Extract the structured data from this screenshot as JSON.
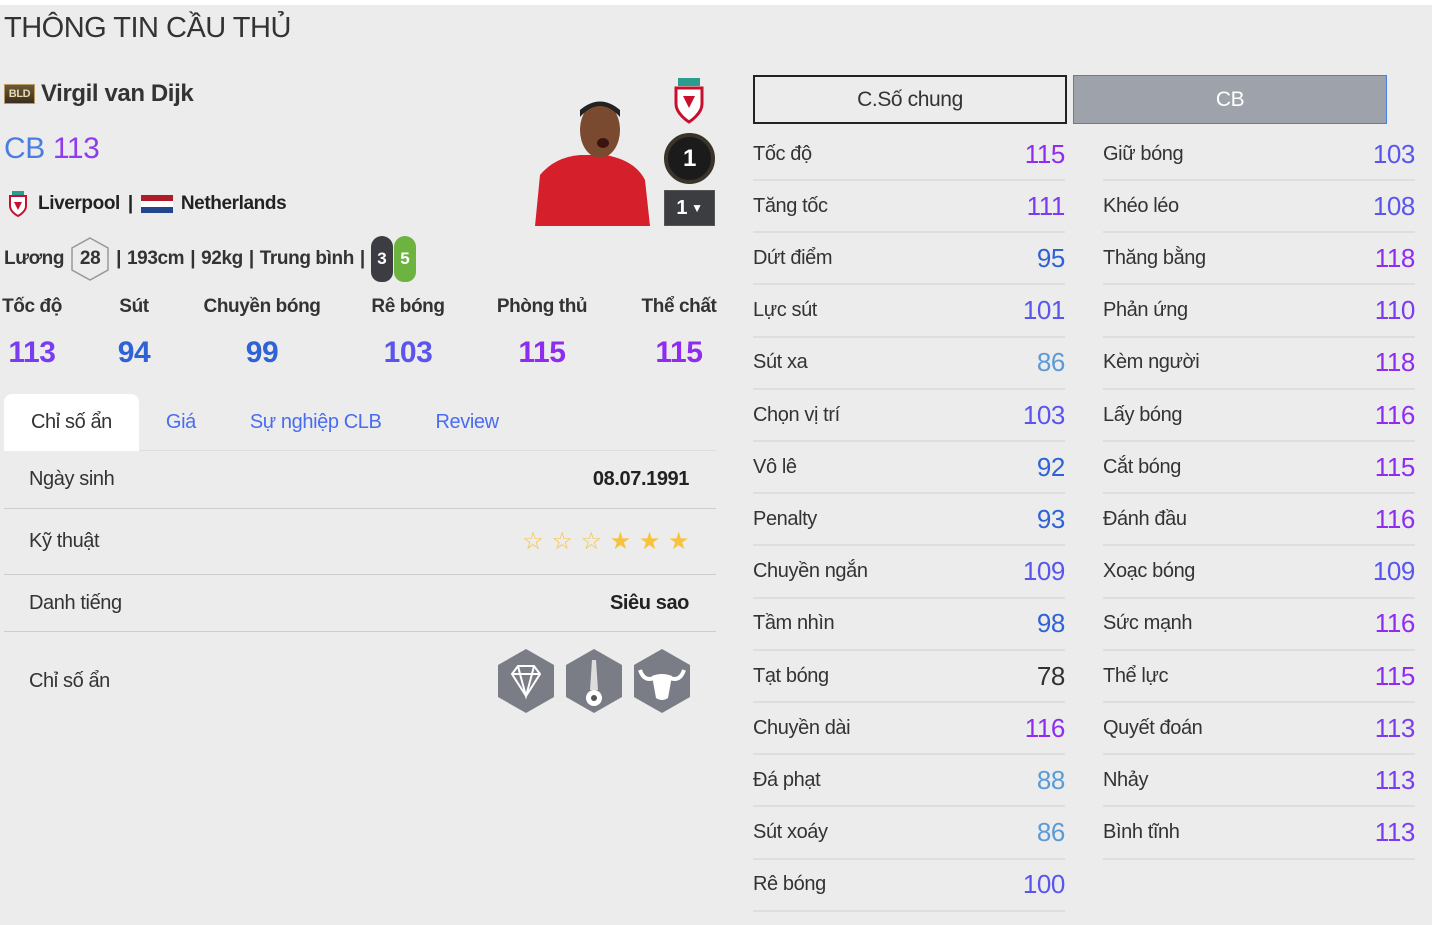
{
  "page_title": "THÔNG TIN CẦU THỦ",
  "player": {
    "season_badge": "BLD",
    "name": "Virgil van Dijk",
    "position": "CB",
    "ovr": "113",
    "club": "Liverpool",
    "nation": "Netherlands",
    "salary_label": "Lương",
    "salary": "28",
    "height": "193cm",
    "weight": "92kg",
    "body_type": "Trung bình",
    "weak_foot": "3",
    "strong_foot": "5",
    "enhance_level": "1",
    "upgrade_level": "1"
  },
  "main_stats": [
    {
      "label": "Tốc độ",
      "value": 113
    },
    {
      "label": "Sút",
      "value": 94
    },
    {
      "label": "Chuyền bóng",
      "value": 99
    },
    {
      "label": "Rê bóng",
      "value": 103
    },
    {
      "label": "Phòng thủ",
      "value": 115
    },
    {
      "label": "Thể chất",
      "value": 115
    }
  ],
  "tabs": [
    {
      "label": "Chỉ số ẩn",
      "active": true
    },
    {
      "label": "Giá"
    },
    {
      "label": "Sự nghiệp CLB"
    },
    {
      "label": "Review"
    }
  ],
  "details": {
    "birth_label": "Ngày sinh",
    "birth": "08.07.1991",
    "skill_label": "Kỹ thuật",
    "skill_stars": 3,
    "skill_max": 6,
    "fame_label": "Danh tiếng",
    "fame": "Siêu sao",
    "traits_label": "Chỉ số ẩn",
    "traits": [
      "diamond-trait-icon",
      "long-shot-trait-icon",
      "bull-trait-icon"
    ]
  },
  "stat_tabs": {
    "general": "C.Số chung",
    "position": "CB"
  },
  "stats_left": [
    {
      "label": "Tốc độ",
      "value": 115
    },
    {
      "label": "Tăng tốc",
      "value": 111
    },
    {
      "label": "Dứt điểm",
      "value": 95
    },
    {
      "label": "Lực sút",
      "value": 101
    },
    {
      "label": "Sút xa",
      "value": 86
    },
    {
      "label": "Chọn vị trí",
      "value": 103
    },
    {
      "label": "Vô lê",
      "value": 92
    },
    {
      "label": "Penalty",
      "value": 93
    },
    {
      "label": "Chuyền ngắn",
      "value": 109
    },
    {
      "label": "Tầm nhìn",
      "value": 98
    },
    {
      "label": "Tạt bóng",
      "value": 78
    },
    {
      "label": "Chuyền dài",
      "value": 116
    },
    {
      "label": "Đá phạt",
      "value": 88
    },
    {
      "label": "Sút xoáy",
      "value": 86
    },
    {
      "label": "Rê bóng",
      "value": 100
    }
  ],
  "stats_right": [
    {
      "label": "Giữ bóng",
      "value": 103
    },
    {
      "label": "Khéo léo",
      "value": 108
    },
    {
      "label": "Thăng bằng",
      "value": 118
    },
    {
      "label": "Phản ứng",
      "value": 110
    },
    {
      "label": "Kèm người",
      "value": 118
    },
    {
      "label": "Lấy bóng",
      "value": 116
    },
    {
      "label": "Cắt bóng",
      "value": 115
    },
    {
      "label": "Đánh đầu",
      "value": 116
    },
    {
      "label": "Xoạc bóng",
      "value": 109
    },
    {
      "label": "Sức mạnh",
      "value": 116
    },
    {
      "label": "Thể lực",
      "value": 115
    },
    {
      "label": "Quyết đoán",
      "value": 113
    },
    {
      "label": "Nhảy",
      "value": 113
    },
    {
      "label": "Bình tĩnh",
      "value": 113
    }
  ],
  "colors": {
    "tier_115": "#8e2cf0",
    "tier_110": "#7a3cf0",
    "tier_100": "#5a55ec",
    "tier_90": "#2e62d6",
    "tier_80": "#5b9ad6",
    "tier_low": "#333333",
    "weak_foot": "#3c3d42",
    "strong_foot": "#6db33f"
  }
}
